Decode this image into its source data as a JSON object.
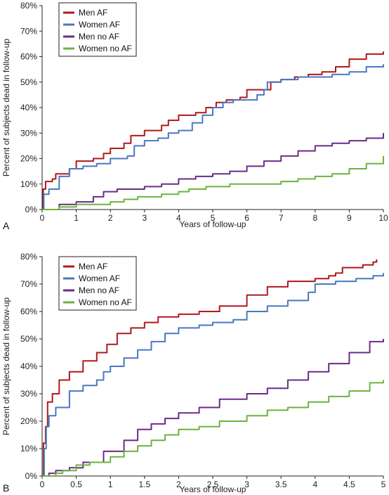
{
  "colors": {
    "men_af": "#b0181e",
    "women_af": "#4a78c2",
    "men_no_af": "#6a2b8a",
    "women_no_af": "#6cb33f"
  },
  "chart_data": [
    {
      "type": "line",
      "panel_label": "A",
      "xlabel": "Years of follow-up",
      "ylabel": "Percent of subjects dead in follow-up",
      "xlim": [
        0,
        10
      ],
      "ylim": [
        0,
        80
      ],
      "x_ticks": [
        "0",
        "1",
        "2",
        "3",
        "4",
        "5",
        "6",
        "7",
        "8",
        "9",
        "10"
      ],
      "y_ticks": [
        "0%",
        "10%",
        "20%",
        "30%",
        "40%",
        "50%",
        "60%",
        "70%",
        "80%"
      ],
      "legend_position": "top-left",
      "series": [
        {
          "name": "Men AF",
          "color_key": "men_af",
          "points": [
            [
              0,
              0
            ],
            [
              0.03,
              8
            ],
            [
              0.1,
              11
            ],
            [
              0.3,
              12
            ],
            [
              0.4,
              14
            ],
            [
              0.8,
              16
            ],
            [
              1.0,
              19
            ],
            [
              1.5,
              20
            ],
            [
              1.8,
              22
            ],
            [
              2.0,
              24
            ],
            [
              2.4,
              26
            ],
            [
              2.6,
              29
            ],
            [
              3.0,
              31
            ],
            [
              3.5,
              33
            ],
            [
              3.7,
              35
            ],
            [
              4.0,
              37
            ],
            [
              4.5,
              38
            ],
            [
              4.8,
              40
            ],
            [
              5.1,
              42
            ],
            [
              5.4,
              43
            ],
            [
              5.8,
              44
            ],
            [
              6.0,
              47
            ],
            [
              6.6,
              47
            ],
            [
              6.7,
              50
            ],
            [
              7.0,
              51
            ],
            [
              7.4,
              52
            ],
            [
              7.8,
              53
            ],
            [
              8.2,
              54
            ],
            [
              8.6,
              56
            ],
            [
              9.0,
              59
            ],
            [
              9.5,
              61
            ],
            [
              10,
              62
            ]
          ]
        },
        {
          "name": "Women AF",
          "color_key": "women_af",
          "points": [
            [
              0,
              0
            ],
            [
              0.05,
              6
            ],
            [
              0.2,
              8
            ],
            [
              0.5,
              13
            ],
            [
              0.8,
              16
            ],
            [
              1.2,
              17
            ],
            [
              1.6,
              18
            ],
            [
              2.0,
              20
            ],
            [
              2.5,
              21
            ],
            [
              2.7,
              25
            ],
            [
              3.0,
              27
            ],
            [
              3.4,
              28
            ],
            [
              3.7,
              30
            ],
            [
              4.0,
              31
            ],
            [
              4.4,
              34
            ],
            [
              4.7,
              37
            ],
            [
              5.0,
              40
            ],
            [
              5.3,
              42
            ],
            [
              5.6,
              43
            ],
            [
              6.0,
              43
            ],
            [
              6.3,
              45
            ],
            [
              6.5,
              47
            ],
            [
              6.6,
              50
            ],
            [
              7.0,
              51
            ],
            [
              7.5,
              52
            ],
            [
              8.0,
              52
            ],
            [
              8.5,
              53
            ],
            [
              9.0,
              54
            ],
            [
              9.5,
              56
            ],
            [
              10,
              57
            ]
          ]
        },
        {
          "name": "Men no AF",
          "color_key": "men_no_af",
          "points": [
            [
              0,
              0
            ],
            [
              0.5,
              2
            ],
            [
              1.0,
              3
            ],
            [
              1.5,
              5
            ],
            [
              1.8,
              7
            ],
            [
              2.2,
              8
            ],
            [
              3.0,
              9
            ],
            [
              3.5,
              10
            ],
            [
              4.0,
              12
            ],
            [
              4.5,
              13
            ],
            [
              5.0,
              14
            ],
            [
              5.5,
              15
            ],
            [
              6.0,
              17
            ],
            [
              6.5,
              19
            ],
            [
              7.0,
              21
            ],
            [
              7.5,
              23
            ],
            [
              8.0,
              25
            ],
            [
              8.5,
              26
            ],
            [
              9.0,
              27
            ],
            [
              9.5,
              28
            ],
            [
              10,
              30
            ]
          ]
        },
        {
          "name": "Women no AF",
          "color_key": "women_no_af",
          "points": [
            [
              0,
              0
            ],
            [
              0.5,
              1
            ],
            [
              1.0,
              2
            ],
            [
              1.5,
              2
            ],
            [
              2.0,
              3
            ],
            [
              2.4,
              4
            ],
            [
              2.8,
              5
            ],
            [
              3.5,
              6
            ],
            [
              4.0,
              7
            ],
            [
              4.3,
              8
            ],
            [
              4.8,
              9
            ],
            [
              5.5,
              10
            ],
            [
              6.0,
              10
            ],
            [
              6.5,
              10
            ],
            [
              7.0,
              11
            ],
            [
              7.5,
              12
            ],
            [
              8.0,
              13
            ],
            [
              8.5,
              14
            ],
            [
              9.0,
              16
            ],
            [
              9.5,
              18
            ],
            [
              10,
              21
            ]
          ]
        }
      ]
    },
    {
      "type": "line",
      "panel_label": "B",
      "xlabel": "Years of follow-up",
      "ylabel": "Percent of subjects dead in follow-up",
      "xlim": [
        0,
        5
      ],
      "ylim": [
        0,
        80
      ],
      "x_ticks": [
        "0",
        "0.5",
        "1",
        "1.5",
        "2",
        "2.5",
        "3",
        "3.5",
        "4",
        "4.5",
        "5"
      ],
      "y_ticks": [
        "0%",
        "10%",
        "20%",
        "30%",
        "40%",
        "50%",
        "60%",
        "70%",
        "80%"
      ],
      "legend_position": "top-left",
      "series": [
        {
          "name": "Men AF",
          "color_key": "men_af",
          "points": [
            [
              0,
              0
            ],
            [
              0.02,
              12
            ],
            [
              0.05,
              18
            ],
            [
              0.08,
              27
            ],
            [
              0.15,
              30
            ],
            [
              0.25,
              35
            ],
            [
              0.4,
              38
            ],
            [
              0.6,
              42
            ],
            [
              0.8,
              45
            ],
            [
              0.95,
              48
            ],
            [
              1.1,
              52
            ],
            [
              1.3,
              54
            ],
            [
              1.5,
              56
            ],
            [
              1.7,
              58
            ],
            [
              2.0,
              59
            ],
            [
              2.3,
              60
            ],
            [
              2.6,
              62
            ],
            [
              3.0,
              66
            ],
            [
              3.3,
              69
            ],
            [
              3.6,
              71
            ],
            [
              4.0,
              72
            ],
            [
              4.2,
              73
            ],
            [
              4.3,
              74
            ],
            [
              4.4,
              76
            ],
            [
              4.7,
              77
            ],
            [
              4.85,
              78
            ],
            [
              4.9,
              79
            ]
          ]
        },
        {
          "name": "Women AF",
          "color_key": "women_af",
          "points": [
            [
              0,
              0
            ],
            [
              0.03,
              10
            ],
            [
              0.06,
              18
            ],
            [
              0.1,
              22
            ],
            [
              0.2,
              25
            ],
            [
              0.4,
              31
            ],
            [
              0.6,
              33
            ],
            [
              0.8,
              35
            ],
            [
              0.9,
              38
            ],
            [
              1.0,
              40
            ],
            [
              1.2,
              43
            ],
            [
              1.4,
              46
            ],
            [
              1.6,
              49
            ],
            [
              1.8,
              52
            ],
            [
              2.0,
              54
            ],
            [
              2.3,
              55
            ],
            [
              2.5,
              56
            ],
            [
              2.8,
              57
            ],
            [
              3.0,
              60
            ],
            [
              3.3,
              62
            ],
            [
              3.6,
              64
            ],
            [
              3.9,
              67
            ],
            [
              4.0,
              70
            ],
            [
              4.3,
              71
            ],
            [
              4.6,
              72
            ],
            [
              4.85,
              73
            ],
            [
              5.0,
              74
            ]
          ]
        },
        {
          "name": "Men no AF",
          "color_key": "men_no_af",
          "points": [
            [
              0,
              0
            ],
            [
              0.1,
              1
            ],
            [
              0.2,
              2
            ],
            [
              0.4,
              3
            ],
            [
              0.6,
              5
            ],
            [
              0.9,
              9
            ],
            [
              1.2,
              13
            ],
            [
              1.4,
              17
            ],
            [
              1.6,
              19
            ],
            [
              1.8,
              21
            ],
            [
              2.0,
              23
            ],
            [
              2.3,
              25
            ],
            [
              2.6,
              28
            ],
            [
              3.0,
              30
            ],
            [
              3.3,
              32
            ],
            [
              3.6,
              35
            ],
            [
              3.9,
              38
            ],
            [
              4.2,
              41
            ],
            [
              4.5,
              45
            ],
            [
              4.8,
              49
            ],
            [
              5.0,
              50
            ]
          ]
        },
        {
          "name": "Women no AF",
          "color_key": "women_no_af",
          "points": [
            [
              0,
              0
            ],
            [
              0.2,
              1
            ],
            [
              0.3,
              2
            ],
            [
              0.5,
              4
            ],
            [
              0.7,
              5
            ],
            [
              1.0,
              7
            ],
            [
              1.2,
              9
            ],
            [
              1.4,
              11
            ],
            [
              1.6,
              13
            ],
            [
              1.8,
              15
            ],
            [
              2.0,
              17
            ],
            [
              2.3,
              18
            ],
            [
              2.6,
              20
            ],
            [
              3.0,
              22
            ],
            [
              3.3,
              24
            ],
            [
              3.6,
              25
            ],
            [
              3.9,
              27
            ],
            [
              4.2,
              29
            ],
            [
              4.5,
              31
            ],
            [
              4.8,
              34
            ],
            [
              5.0,
              35
            ]
          ]
        }
      ]
    }
  ]
}
